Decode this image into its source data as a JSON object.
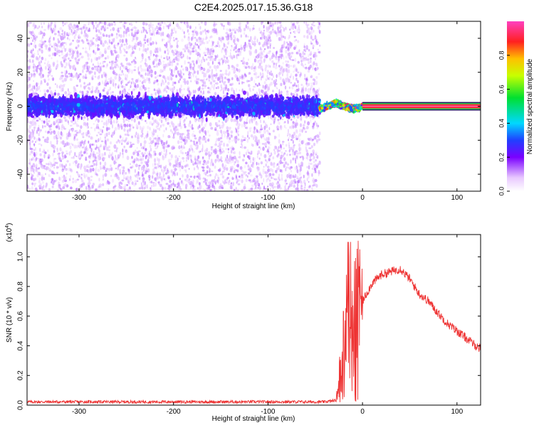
{
  "figure": {
    "title": "C2E4.2025.017.15.36.G18"
  },
  "chart_data": [
    {
      "type": "heatmap",
      "title": "C2E4.2025.017.15.36.G18",
      "xlabel": "Height of straight line (km)",
      "ylabel": "Frequency (Hz)",
      "xlim": [
        -355,
        125
      ],
      "ylim": [
        -50,
        50
      ],
      "x_ticks": [
        -300,
        -200,
        -100,
        0,
        100
      ],
      "y_ticks": [
        -40,
        -20,
        0,
        20,
        40
      ],
      "grid": false,
      "colorbar": {
        "label": "Normalized spectral amplitude",
        "range": [
          0.0,
          1.0
        ],
        "ticks": [
          0.0,
          0.2,
          0.4,
          0.6,
          0.8
        ],
        "tick_labels": [
          "0.0",
          "0.2",
          "0.4",
          "0.6",
          "0.8"
        ]
      },
      "regions": [
        {
          "x_range": [
            -355,
            -45
          ],
          "description_hidden": true,
          "center_freq_hz": 0,
          "core_halfwidth_hz": 9,
          "amplitude_typical": 0.08
        },
        {
          "x_range": [
            -45,
            0
          ],
          "center_freq_hz": 0,
          "core_halfwidth_hz": 5,
          "amplitude_typical": 0.75
        },
        {
          "x_range": [
            0,
            125
          ],
          "center_freq_hz": 0,
          "core_halfwidth_hz": 1.5,
          "amplitude_typical": 0.95
        }
      ]
    },
    {
      "type": "line",
      "xlabel": "Height of straight line (km)",
      "ylabel": "SNR (10 * v/v)",
      "y_exponent_label": "(x10",
      "y_exponent_sup": "4",
      "y_exponent_close": ")",
      "xlim": [
        -355,
        125
      ],
      "ylim": [
        0,
        1.15
      ],
      "x_ticks": [
        -300,
        -200,
        -100,
        0,
        100
      ],
      "y_ticks": [
        0.0,
        0.2,
        0.4,
        0.6,
        0.8,
        1.0
      ],
      "y_tick_labels": [
        "0.0",
        "0.2",
        "0.4",
        "0.6",
        "0.8",
        "1.0"
      ],
      "color": "#ee3333",
      "series": [
        {
          "x": [
            -355,
            -300,
            -200,
            -100,
            -40,
            -28,
            -25,
            -22,
            -20,
            -18,
            -15,
            -12,
            -10,
            -5,
            0,
            10,
            20,
            30,
            40,
            50,
            60,
            70,
            80,
            90,
            100,
            110,
            120,
            125
          ],
          "y": [
            0.02,
            0.02,
            0.02,
            0.02,
            0.02,
            0.03,
            0.15,
            0.35,
            0.55,
            0.45,
            0.7,
            0.4,
            0.6,
            0.65,
            0.7,
            0.82,
            0.88,
            0.9,
            0.92,
            0.85,
            0.75,
            0.7,
            0.62,
            0.55,
            0.5,
            0.45,
            0.4,
            0.38
          ]
        }
      ]
    }
  ]
}
